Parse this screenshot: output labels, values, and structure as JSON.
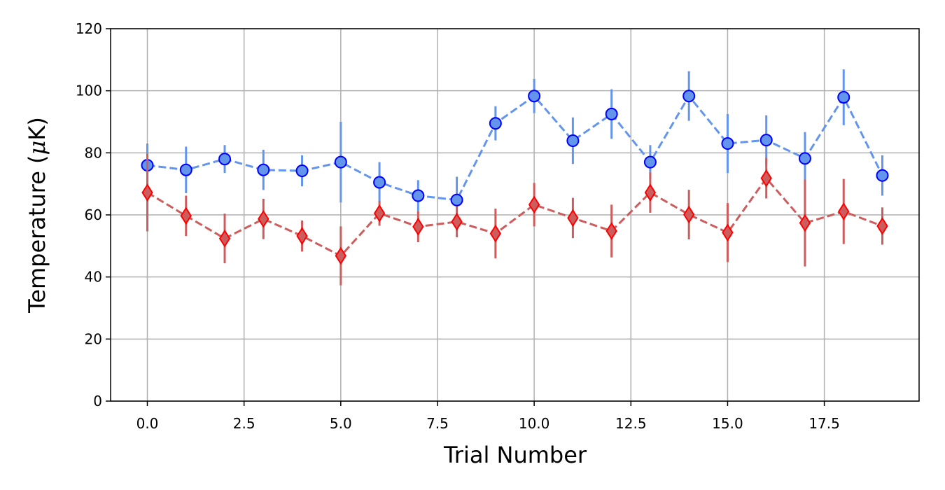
{
  "chart_data": {
    "type": "scatter",
    "xlabel": "Trial Number",
    "ylabel_main": "Temperature (",
    "ylabel_mu": "μ",
    "ylabel_unit": "K)",
    "xlim": [
      -0.95,
      19.95
    ],
    "ylim": [
      0,
      120
    ],
    "x_ticks": [
      0.0,
      2.5,
      5.0,
      7.5,
      10.0,
      12.5,
      15.0,
      17.5
    ],
    "x_tick_labels": [
      "0.0",
      "2.5",
      "5.0",
      "7.5",
      "10.0",
      "12.5",
      "15.0",
      "17.5"
    ],
    "y_ticks": [
      0,
      20,
      40,
      60,
      80,
      100,
      120
    ],
    "y_tick_labels": [
      "0",
      "20",
      "40",
      "60",
      "80",
      "100",
      "120"
    ],
    "grid": true,
    "x": [
      0,
      1,
      2,
      3,
      4,
      5,
      6,
      7,
      8,
      9,
      10,
      11,
      12,
      13,
      14,
      15,
      16,
      17,
      18,
      19
    ],
    "series": [
      {
        "marker": "circle",
        "line_color": "#6495ED",
        "marker_fill": "#6495ED",
        "marker_edge": "#0000FF",
        "values": [
          76,
          74.5,
          78,
          74.5,
          74.2,
          77,
          70.5,
          66.2,
          64.8,
          89.5,
          98.3,
          83.9,
          92.5,
          77,
          98.3,
          83,
          84.1,
          78.2,
          97.9,
          72.7
        ],
        "errors": [
          7,
          7.5,
          4.5,
          6.5,
          5,
          13,
          6.5,
          5,
          7.5,
          5.5,
          5.5,
          7.5,
          8,
          5.5,
          8,
          9.5,
          8,
          8.5,
          9,
          6.5
        ]
      },
      {
        "marker": "diamond",
        "line_color": "#CD5C5C",
        "marker_fill": "#CD5C5C",
        "marker_edge": "#FF0000",
        "values": [
          67.2,
          59.7,
          52.4,
          58.7,
          53.2,
          46.8,
          60.5,
          56.2,
          57.8,
          54,
          63.3,
          59,
          54.8,
          67.2,
          60.1,
          54.3,
          71.8,
          57.4,
          61.1,
          56.4
        ],
        "errors": [
          12.5,
          6.5,
          8,
          6.5,
          5,
          9.5,
          4,
          5,
          5,
          8,
          7,
          6.5,
          8.5,
          6.5,
          8,
          9.5,
          6.5,
          14,
          10.5,
          6
        ]
      }
    ]
  }
}
